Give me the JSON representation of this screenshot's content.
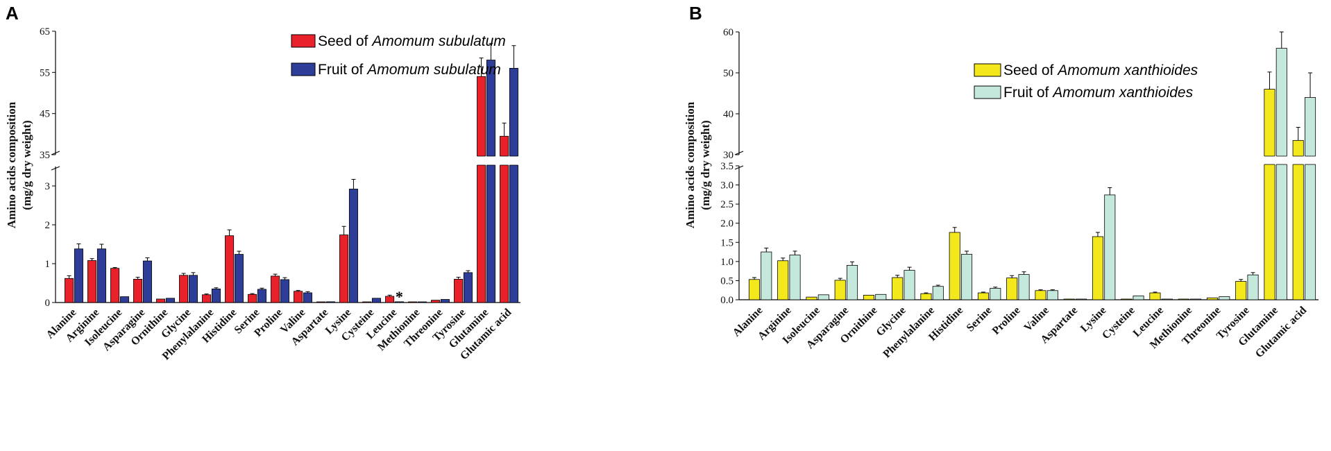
{
  "chart_data": [
    {
      "type": "bar",
      "panel_label": "A",
      "ylabel_line1": "Amino acids composition",
      "ylabel_line2": "(mg/g dry weight)",
      "broken_axis": true,
      "lower_ylim": [
        0,
        3.5
      ],
      "lower_ticks": [
        "0",
        "1",
        "2",
        "3"
      ],
      "upper_ylim": [
        35,
        65
      ],
      "upper_ticks": [
        "35",
        "45",
        "55",
        "65"
      ],
      "legend_position": "top-center",
      "categories": [
        "Alanine",
        "Arginine",
        "Isoleucine",
        "Asparagine",
        "Ornithine",
        "Glycine",
        "Phenylalanine",
        "Histidine",
        "Serine",
        "Proline",
        "Valine",
        "Aspartate",
        "Lysine",
        "Cysteine",
        "Leucine",
        "Methionine",
        "Threonine",
        "Tyrosine",
        "Glutamine",
        "Glutamic acid"
      ],
      "annotation": {
        "text": "*",
        "category": "Leucine"
      },
      "series": [
        {
          "legend_prefix": "Seed of ",
          "legend_species": "Amomum subulatum",
          "color": "#e8212a",
          "values": [
            0.62,
            1.08,
            0.88,
            0.6,
            0.09,
            0.7,
            0.2,
            1.72,
            0.21,
            0.68,
            0.29,
            0.01,
            1.74,
            0.01,
            0.16,
            0.01,
            0.06,
            0.6,
            54.0,
            39.5
          ],
          "errors": [
            0.07,
            0.05,
            0.02,
            0.05,
            0.01,
            0.05,
            0.02,
            0.15,
            0.02,
            0.05,
            0.02,
            0.005,
            0.22,
            0.005,
            0.03,
            0.005,
            0.01,
            0.05,
            4.5,
            3.2
          ]
        },
        {
          "legend_prefix": "Fruit of ",
          "legend_species": "Amomum subulatum",
          "color": "#2e3d98",
          "values": [
            1.38,
            1.38,
            0.15,
            1.07,
            0.11,
            0.7,
            0.35,
            1.24,
            0.34,
            0.59,
            0.25,
            0.02,
            2.92,
            0.11,
            0.02,
            0.01,
            0.08,
            0.77,
            58.0,
            56.0
          ],
          "errors": [
            0.13,
            0.12,
            0.01,
            0.08,
            0.01,
            0.07,
            0.03,
            0.08,
            0.03,
            0.05,
            0.03,
            0.005,
            0.25,
            0.01,
            0.005,
            0.005,
            0.01,
            0.05,
            4.0,
            5.5
          ]
        }
      ]
    },
    {
      "type": "bar",
      "panel_label": "B",
      "ylabel_line1": "Amino acids composition",
      "ylabel_line2": "(mg/g dry weight)",
      "broken_axis": true,
      "lower_ylim": [
        0,
        3.5
      ],
      "lower_ticks": [
        "0.0",
        "0.5",
        "1.0",
        "1.5",
        "2.0",
        "2.5",
        "3.0",
        "3.5"
      ],
      "upper_ylim": [
        30,
        60
      ],
      "upper_ticks": [
        "30",
        "40",
        "50",
        "60"
      ],
      "legend_position": "top-center",
      "categories": [
        "Alanine",
        "Arginine",
        "Isoleucine",
        "Asparagine",
        "Ornithine",
        "Glycine",
        "Phenylalanine",
        "Histidine",
        "Serine",
        "Proline",
        "Valine",
        "Aspartate",
        "Lysine",
        "Cysteine",
        "Leucine",
        "Methionine",
        "Threonine",
        "Tyrosine",
        "Glutamine",
        "Glutamic acid"
      ],
      "series": [
        {
          "legend_prefix": "Seed of ",
          "legend_species": "Amomum xanthioides",
          "color": "#f2e81c",
          "values": [
            0.53,
            1.02,
            0.07,
            0.51,
            0.12,
            0.58,
            0.16,
            1.76,
            0.18,
            0.57,
            0.24,
            0.01,
            1.65,
            0.01,
            0.18,
            0.01,
            0.05,
            0.48,
            46.0,
            33.5
          ],
          "errors": [
            0.05,
            0.07,
            0.01,
            0.05,
            0.01,
            0.06,
            0.02,
            0.13,
            0.02,
            0.06,
            0.02,
            0.005,
            0.11,
            0.005,
            0.02,
            0.005,
            0.01,
            0.05,
            4.2,
            3.2
          ]
        },
        {
          "legend_prefix": "Fruit of ",
          "legend_species": "Amomum xanthioides",
          "color": "#c4e8dc",
          "values": [
            1.25,
            1.17,
            0.13,
            0.9,
            0.14,
            0.77,
            0.35,
            1.19,
            0.3,
            0.66,
            0.24,
            0.01,
            2.74,
            0.1,
            0.01,
            0.01,
            0.08,
            0.65,
            56.0,
            44.0
          ],
          "errors": [
            0.1,
            0.1,
            0.01,
            0.09,
            0.01,
            0.08,
            0.03,
            0.08,
            0.03,
            0.07,
            0.02,
            0.005,
            0.19,
            0.01,
            0.005,
            0.005,
            0.01,
            0.06,
            4.0,
            6.0
          ]
        }
      ]
    }
  ]
}
